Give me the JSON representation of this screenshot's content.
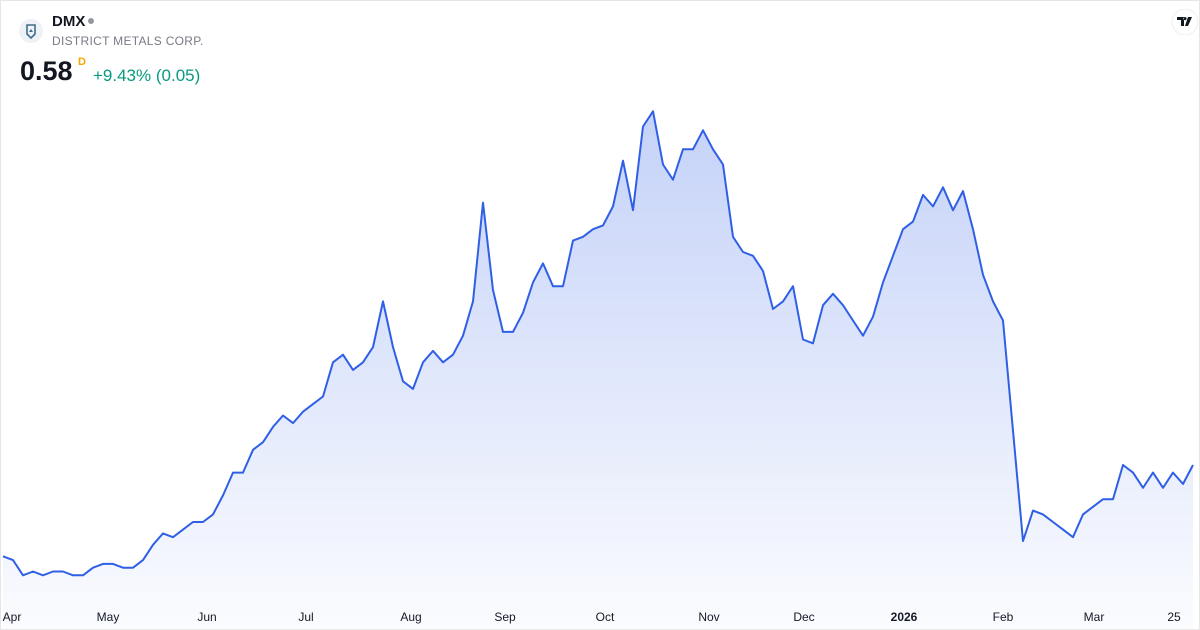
{
  "header": {
    "symbol": "DMX",
    "name": "DISTRICT METALS CORP.",
    "price": "0.58",
    "interval": "D",
    "change": "+9.43% (0.05)"
  },
  "chart_data": {
    "type": "area",
    "color": "#2f5fe6",
    "values": [
      0.34,
      0.33,
      0.29,
      0.3,
      0.29,
      0.3,
      0.3,
      0.29,
      0.29,
      0.31,
      0.32,
      0.32,
      0.31,
      0.31,
      0.33,
      0.37,
      0.4,
      0.39,
      0.41,
      0.43,
      0.43,
      0.45,
      0.5,
      0.56,
      0.56,
      0.62,
      0.64,
      0.68,
      0.71,
      0.69,
      0.72,
      0.74,
      0.76,
      0.85,
      0.87,
      0.83,
      0.85,
      0.89,
      1.01,
      0.89,
      0.8,
      0.78,
      0.85,
      0.88,
      0.85,
      0.87,
      0.92,
      1.01,
      1.27,
      1.04,
      0.93,
      0.93,
      0.98,
      1.06,
      1.11,
      1.05,
      1.05,
      1.17,
      1.18,
      1.2,
      1.21,
      1.26,
      1.38,
      1.25,
      1.47,
      1.51,
      1.37,
      1.33,
      1.41,
      1.41,
      1.46,
      1.41,
      1.37,
      1.18,
      1.14,
      1.13,
      1.09,
      0.99,
      1.01,
      1.05,
      0.91,
      0.9,
      1.0,
      1.03,
      1.0,
      0.96,
      0.92,
      0.97,
      1.06,
      1.13,
      1.2,
      1.22,
      1.29,
      1.26,
      1.31,
      1.25,
      1.3,
      1.2,
      1.08,
      1.01,
      0.96,
      0.67,
      0.38,
      0.46,
      0.45,
      0.43,
      0.41,
      0.39,
      0.45,
      0.47,
      0.49,
      0.49,
      0.58,
      0.56,
      0.52,
      0.56,
      0.52,
      0.56,
      0.53,
      0.58
    ],
    "xlim": [
      0,
      119
    ],
    "xticks": [
      {
        "value": 0.9,
        "label": "Apr"
      },
      {
        "value": 10.5,
        "label": "May"
      },
      {
        "value": 20.4,
        "label": "Jun"
      },
      {
        "value": 30.3,
        "label": "Jul"
      },
      {
        "value": 40.8,
        "label": "Aug"
      },
      {
        "value": 50.2,
        "label": "Sep"
      },
      {
        "value": 60.2,
        "label": "Oct"
      },
      {
        "value": 70.6,
        "label": "Nov"
      },
      {
        "value": 80.1,
        "label": "Dec"
      },
      {
        "value": 90.1,
        "label": "2026"
      },
      {
        "value": 100,
        "label": "Feb"
      },
      {
        "value": 109.1,
        "label": "Mar"
      },
      {
        "value": 117.1,
        "label": "25"
      }
    ],
    "ylim": [
      0.2,
      1.75
    ]
  }
}
